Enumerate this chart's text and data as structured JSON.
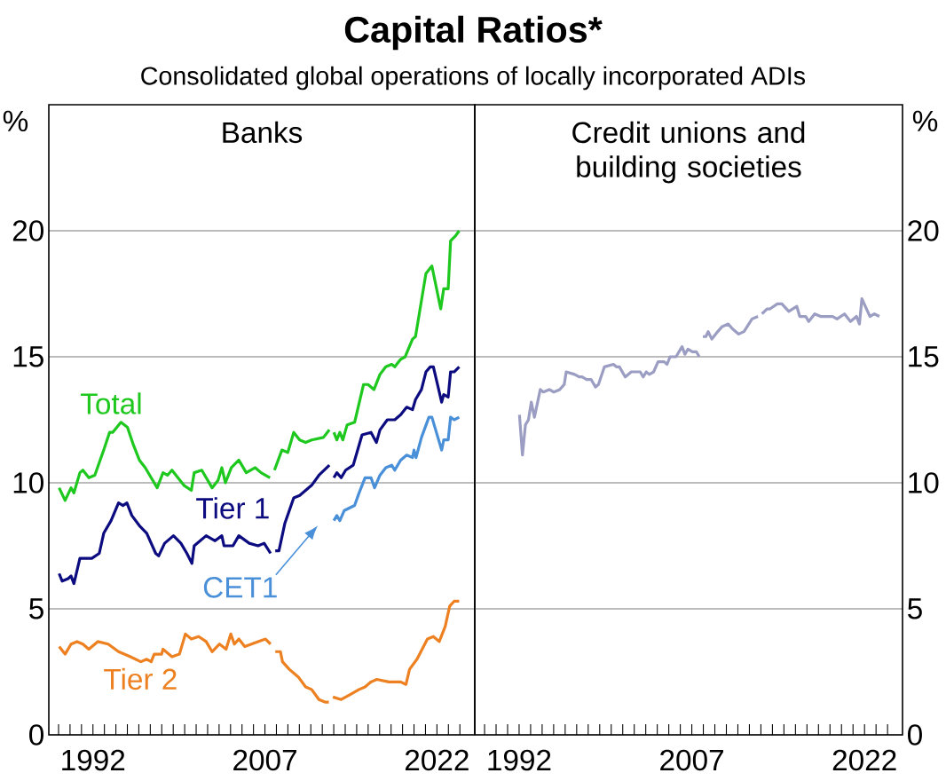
{
  "chart_data": [
    {
      "type": "line",
      "title": "Capital Ratios*",
      "subtitle": "Consolidated global operations of locally incorporated ADIs",
      "annotations": [
        "Banks"
      ],
      "ylabel": "%",
      "xlim": [
        1988.15,
        2025.3
      ],
      "ylim": [
        0,
        25
      ],
      "yticks": [
        0,
        5,
        10,
        15,
        20
      ],
      "grid": "y",
      "xticks": [
        {
          "value": 1989,
          "label": null
        },
        {
          "value": 1990,
          "label": null
        },
        {
          "value": 1991,
          "label": null
        },
        {
          "value": 1992,
          "label": "1992"
        },
        {
          "value": 1993,
          "label": null
        },
        {
          "value": 1994,
          "label": null
        },
        {
          "value": 1995,
          "label": null
        },
        {
          "value": 1996,
          "label": null
        },
        {
          "value": 1997,
          "label": null
        },
        {
          "value": 1998,
          "label": null
        },
        {
          "value": 1999,
          "label": null
        },
        {
          "value": 2000,
          "label": null
        },
        {
          "value": 2001,
          "label": null
        },
        {
          "value": 2002,
          "label": null
        },
        {
          "value": 2003,
          "label": null
        },
        {
          "value": 2004,
          "label": null
        },
        {
          "value": 2005,
          "label": null
        },
        {
          "value": 2006,
          "label": null
        },
        {
          "value": 2007,
          "label": "2007"
        },
        {
          "value": 2008,
          "label": null
        },
        {
          "value": 2009,
          "label": null
        },
        {
          "value": 2010,
          "label": null
        },
        {
          "value": 2011,
          "label": null
        },
        {
          "value": 2012,
          "label": null
        },
        {
          "value": 2013,
          "label": null
        },
        {
          "value": 2014,
          "label": null
        },
        {
          "value": 2015,
          "label": null
        },
        {
          "value": 2016,
          "label": null
        },
        {
          "value": 2017,
          "label": null
        },
        {
          "value": 2018,
          "label": null
        },
        {
          "value": 2019,
          "label": null
        },
        {
          "value": 2020,
          "label": null
        },
        {
          "value": 2021,
          "label": null
        },
        {
          "value": 2022,
          "label": "2022"
        },
        {
          "value": 2023,
          "label": null
        },
        {
          "value": 2024,
          "label": null
        }
      ],
      "series": [
        {
          "name": "Total",
          "color": "#1ec81e",
          "x": [
            1989.05,
            1989.57,
            1990.09,
            1990.34,
            1990.86,
            1991.12,
            1991.64,
            1992.16,
            1992.55,
            1992.94,
            1993.45,
            1993.72,
            1994.44,
            1995.01,
            1995.53,
            1996.05,
            1996.56,
            1996.95,
            1997.6,
            1998.11,
            1998.5,
            1998.89,
            1999.41,
            1999.93,
            2000.58,
            2000.83,
            2001.49,
            2002.39,
            2002.91,
            2003.24,
            2003.55,
            2004.07,
            2004.72,
            2005.37,
            2006.15,
            2006.66,
            2007.44,
            2007.6,
            2007.83,
            2008.48,
            2008.99,
            2009.51,
            2010.03,
            2010.55,
            2011.07,
            2012.1,
            2012.62,
            2012.8,
            2013.01,
            2013.27,
            2013.53,
            2013.79,
            2014.17,
            2014.82,
            2015.6,
            2015.99,
            2016.51,
            2017.03,
            2017.54,
            2018.06,
            2018.32,
            2018.84,
            2019.23,
            2019.87,
            2020.13,
            2021.04,
            2021.56,
            2022.33,
            2022.59,
            2022.98,
            2023.19,
            2023.63,
            2023.94
          ],
          "values": [
            9.8,
            9.3,
            9.8,
            9.6,
            10.4,
            10.5,
            10.2,
            10.3,
            10.8,
            11.3,
            12.0,
            12.0,
            12.4,
            12.2,
            11.5,
            10.9,
            10.6,
            10.3,
            9.8,
            10.4,
            10.3,
            10.5,
            10.2,
            9.9,
            9.7,
            10.4,
            10.5,
            9.8,
            10.1,
            10.6,
            10.0,
            10.6,
            10.9,
            10.4,
            10.6,
            10.4,
            10.2,
            null,
            10.5,
            11.3,
            11.2,
            12.0,
            11.7,
            11.6,
            11.7,
            11.8,
            12.1,
            null,
            12.0,
            11.7,
            12.0,
            11.7,
            12.3,
            12.4,
            13.9,
            13.9,
            13.7,
            14.3,
            14.6,
            14.7,
            14.6,
            14.9,
            15.0,
            15.7,
            15.8,
            18.3,
            18.6,
            16.9,
            17.7,
            17.7,
            19.6,
            19.8,
            20.0
          ]
        },
        {
          "name": "Tier 1",
          "color": "#0c0c80",
          "x": [
            1989.05,
            1989.31,
            1989.83,
            1990.09,
            1990.34,
            1990.86,
            1991.9,
            1992.55,
            1992.94,
            1993.58,
            1994.23,
            1994.62,
            1994.96,
            1995.39,
            1996.05,
            1996.69,
            1997.08,
            1997.47,
            1997.73,
            1998.25,
            1999.02,
            1999.67,
            2000.19,
            2000.63,
            2000.83,
            2001.87,
            2002.65,
            2003.24,
            2003.43,
            2004.21,
            2004.72,
            2005.63,
            2006.4,
            2006.93,
            2007.49,
            2007.7,
            2007.9,
            2008.22,
            2008.74,
            2009.51,
            2010.03,
            2011.07,
            2011.71,
            2012.62,
            2012.8,
            2013.01,
            2013.27,
            2013.65,
            2014.04,
            2014.7,
            2015.47,
            2016.25,
            2016.72,
            2017.03,
            2017.67,
            2018.32,
            2018.84,
            2019.36,
            2019.87,
            2020.13,
            2020.65,
            2021.04,
            2021.42,
            2021.69,
            2022.41,
            2022.59,
            2022.98,
            2023.19,
            2023.5,
            2023.94
          ],
          "values": [
            6.4,
            6.1,
            6.2,
            6.3,
            6.0,
            7.0,
            7.0,
            7.2,
            8.0,
            8.5,
            9.2,
            9.1,
            9.2,
            8.7,
            8.3,
            8.0,
            7.6,
            7.2,
            7.1,
            7.6,
            7.9,
            7.6,
            7.2,
            6.8,
            7.5,
            7.9,
            7.7,
            7.9,
            7.5,
            7.5,
            7.9,
            7.6,
            7.5,
            7.6,
            7.2,
            null,
            7.3,
            7.3,
            8.4,
            9.4,
            9.5,
            9.9,
            10.3,
            10.7,
            null,
            10.2,
            10.4,
            10.2,
            10.5,
            10.7,
            11.9,
            12.0,
            11.6,
            12.1,
            12.5,
            12.5,
            12.7,
            13.0,
            12.9,
            13.3,
            13.7,
            14.4,
            14.6,
            14.6,
            13.2,
            13.5,
            13.4,
            14.4,
            14.4,
            14.6
          ]
        },
        {
          "name": "CET1",
          "color": "#4a90d9",
          "x": [
            2013.01,
            2013.27,
            2013.53,
            2013.92,
            2014.82,
            2015.21,
            2015.73,
            2016.25,
            2016.56,
            2017.03,
            2017.54,
            2018.06,
            2018.32,
            2018.84,
            2019.36,
            2019.87,
            2020.0,
            2020.18,
            2020.65,
            2021.3,
            2021.56,
            2022.41,
            2022.59,
            2022.98,
            2023.19,
            2023.5,
            2023.94
          ],
          "values": [
            8.5,
            8.7,
            8.5,
            8.9,
            9.1,
            9.6,
            10.2,
            10.2,
            9.8,
            10.3,
            10.6,
            10.7,
            10.5,
            10.9,
            11.1,
            11.0,
            11.3,
            11.0,
            11.8,
            12.6,
            12.6,
            11.3,
            11.7,
            11.7,
            12.6,
            12.5,
            12.6
          ]
        },
        {
          "name": "Tier 2",
          "color": "#ed8121",
          "x": [
            1989.05,
            1989.57,
            1990.09,
            1990.61,
            1991.12,
            1991.64,
            1992.42,
            1993.33,
            1994.23,
            1995.27,
            1996.17,
            1996.69,
            1997.08,
            1997.34,
            1997.99,
            1998.11,
            1998.89,
            1999.54,
            2000.06,
            2000.58,
            2001.22,
            2001.87,
            2002.39,
            2003.04,
            2003.61,
            2004.02,
            2004.33,
            2004.72,
            2005.24,
            2006.4,
            2007.05,
            2007.49,
            2007.7,
            2007.9,
            2008.35,
            2008.53,
            2009.12,
            2009.9,
            2010.55,
            2011.07,
            2011.71,
            2012.23,
            2012.57,
            2012.75,
            2012.93,
            2013.65,
            2014.43,
            2015.21,
            2015.73,
            2016.25,
            2016.76,
            2017.8,
            2018.84,
            2019.3,
            2019.61,
            2020.26,
            2021.17,
            2021.69,
            2022.2,
            2022.72,
            2023.11,
            2023.5,
            2023.94
          ],
          "values": [
            3.5,
            3.2,
            3.6,
            3.7,
            3.6,
            3.4,
            3.7,
            3.6,
            3.3,
            3.1,
            2.9,
            3.0,
            2.9,
            3.2,
            3.2,
            3.4,
            3.1,
            3.2,
            4.0,
            3.8,
            3.9,
            3.7,
            3.3,
            3.6,
            3.4,
            4.0,
            3.6,
            3.8,
            3.5,
            3.7,
            3.8,
            3.6,
            null,
            3.3,
            3.3,
            2.9,
            2.6,
            2.3,
            1.9,
            1.8,
            1.4,
            1.3,
            1.3,
            null,
            1.5,
            1.4,
            1.6,
            1.8,
            1.9,
            2.1,
            2.2,
            2.1,
            2.1,
            2.0,
            2.6,
            3.0,
            3.8,
            3.9,
            3.7,
            4.3,
            5.1,
            5.3,
            5.3
          ]
        }
      ]
    },
    {
      "type": "line",
      "title": "Credit unions and building societies",
      "ylabel": "%",
      "xlim": [
        1988.15,
        2025.3
      ],
      "ylim": [
        0,
        25
      ],
      "yticks": [
        0,
        5,
        10,
        15,
        20
      ],
      "grid": "y",
      "xticks": [
        {
          "value": 1989,
          "label": null
        },
        {
          "value": 1990,
          "label": null
        },
        {
          "value": 1991,
          "label": null
        },
        {
          "value": 1992,
          "label": "1992"
        },
        {
          "value": 1993,
          "label": null
        },
        {
          "value": 1994,
          "label": null
        },
        {
          "value": 1995,
          "label": null
        },
        {
          "value": 1996,
          "label": null
        },
        {
          "value": 1997,
          "label": null
        },
        {
          "value": 1998,
          "label": null
        },
        {
          "value": 1999,
          "label": null
        },
        {
          "value": 2000,
          "label": null
        },
        {
          "value": 2001,
          "label": null
        },
        {
          "value": 2002,
          "label": null
        },
        {
          "value": 2003,
          "label": null
        },
        {
          "value": 2004,
          "label": null
        },
        {
          "value": 2005,
          "label": null
        },
        {
          "value": 2006,
          "label": null
        },
        {
          "value": 2007,
          "label": "2007"
        },
        {
          "value": 2008,
          "label": null
        },
        {
          "value": 2009,
          "label": null
        },
        {
          "value": 2010,
          "label": null
        },
        {
          "value": 2011,
          "label": null
        },
        {
          "value": 2012,
          "label": null
        },
        {
          "value": 2013,
          "label": null
        },
        {
          "value": 2014,
          "label": null
        },
        {
          "value": 2015,
          "label": null
        },
        {
          "value": 2016,
          "label": null
        },
        {
          "value": 2017,
          "label": null
        },
        {
          "value": 2018,
          "label": null
        },
        {
          "value": 2019,
          "label": null
        },
        {
          "value": 2020,
          "label": null
        },
        {
          "value": 2021,
          "label": null
        },
        {
          "value": 2022,
          "label": "2022"
        },
        {
          "value": 2023,
          "label": null
        },
        {
          "value": 2024,
          "label": null
        }
      ],
      "color": "#9b9dc2",
      "x": [
        1992.03,
        1992.29,
        1992.55,
        1992.81,
        1993.06,
        1993.33,
        1993.84,
        1994.1,
        1994.62,
        1995.01,
        1995.53,
        1995.92,
        1996.09,
        1996.82,
        1997.21,
        1997.47,
        1997.86,
        1998.25,
        1998.64,
        1998.89,
        1999.41,
        2000.19,
        2000.45,
        2000.71,
        2001.22,
        2001.74,
        2002.52,
        2002.78,
        2003.04,
        2003.3,
        2003.68,
        2004.07,
        2004.6,
        2004.85,
        2005.11,
        2005.63,
        2006.15,
        2006.4,
        2006.66,
        2007.05,
        2007.39,
        2007.65,
        2007.8,
        2007.96,
        2008.22,
        2008.42,
        2008.74,
        2009.25,
        2009.64,
        2010.16,
        2010.55,
        2011.07,
        2011.53,
        2012.23,
        2012.75,
        2012.9,
        2013.09,
        2013.53,
        2013.79,
        2014.43,
        2014.82,
        2015.42,
        2016.12,
        2016.37,
        2016.89,
        2017.15,
        2017.67,
        2018.19,
        2018.7,
        2019.23,
        2019.61,
        2020.26,
        2020.78,
        2021.3,
        2021.56,
        2021.77,
        2022.47,
        2022.85,
        2023.29
      ],
      "values": [
        12.7,
        11.1,
        12.3,
        12.5,
        13.2,
        12.6,
        13.7,
        13.6,
        13.7,
        13.6,
        13.7,
        13.9,
        14.4,
        14.3,
        14.2,
        14.2,
        14.1,
        14.1,
        13.8,
        13.9,
        14.6,
        14.7,
        14.6,
        14.6,
        14.2,
        14.4,
        14.4,
        14.2,
        14.4,
        14.3,
        14.4,
        14.8,
        14.8,
        14.7,
        15.0,
        15.0,
        15.4,
        15.1,
        15.3,
        15.2,
        15.2,
        15.0,
        null,
        15.8,
        15.8,
        16.0,
        15.7,
        16.0,
        16.2,
        16.3,
        16.1,
        15.9,
        16.0,
        16.5,
        16.6,
        null,
        16.7,
        16.9,
        16.9,
        17.1,
        17.1,
        16.8,
        17.0,
        16.6,
        16.6,
        16.4,
        16.7,
        16.6,
        16.6,
        16.6,
        16.5,
        16.7,
        16.4,
        16.6,
        16.3,
        17.3,
        16.6,
        16.7,
        16.6
      ]
    }
  ]
}
